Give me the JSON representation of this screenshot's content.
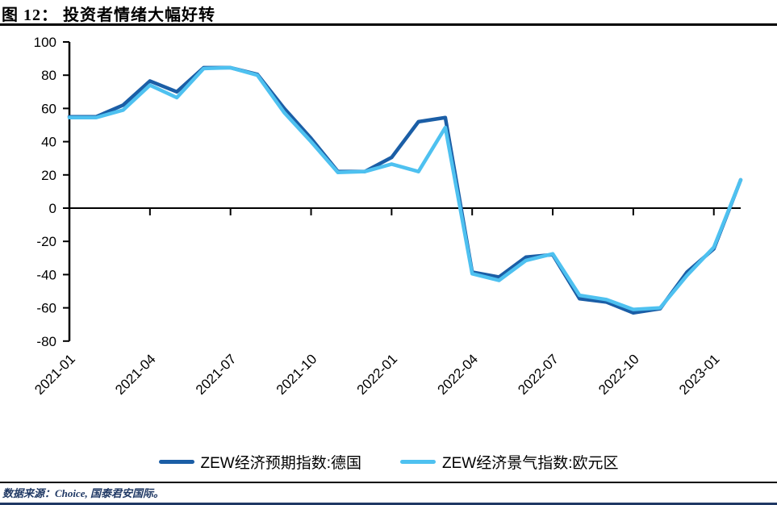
{
  "header": {
    "title": "图 12： 投资者情绪大幅好转"
  },
  "footer": {
    "source": "数据来源：Choice, 国泰君安国际。"
  },
  "colors": {
    "germany_line": "#1B5EA6",
    "eurozone_line": "#4EC1F0",
    "axis": "#000000",
    "source_text": "#1F3864",
    "bottom_rule": "#1F3864"
  },
  "legend": {
    "items": [
      {
        "label": "ZEW经济预期指数:德国",
        "color": "#1B5EA6"
      },
      {
        "label": "ZEW经济景气指数:欧元区",
        "color": "#4EC1F0"
      }
    ]
  },
  "chart_data": {
    "type": "line",
    "title": "",
    "xlabel": "",
    "ylabel": "",
    "ylim": [
      -80,
      100
    ],
    "ytick_step": 20,
    "grid": false,
    "legend_position": "bottom",
    "x": [
      "2021-01",
      "2021-02",
      "2021-03",
      "2021-04",
      "2021-05",
      "2021-06",
      "2021-07",
      "2021-08",
      "2021-09",
      "2021-10",
      "2021-11",
      "2021-12",
      "2022-01",
      "2022-02",
      "2022-03",
      "2022-04",
      "2022-05",
      "2022-06",
      "2022-07",
      "2022-08",
      "2022-09",
      "2022-10",
      "2022-11",
      "2022-12",
      "2023-01",
      "2023-02"
    ],
    "x_tick_labels": [
      "2021-01",
      "2021-04",
      "2021-07",
      "2021-10",
      "2022-01",
      "2022-04",
      "2022-07",
      "2022-10",
      "2023-01"
    ],
    "series": [
      {
        "name": "ZEW经济预期指数:德国",
        "color": "#1B5EA6",
        "values": [
          55,
          55,
          62,
          76.5,
          70,
          84.5,
          84.5,
          80.5,
          60,
          42,
          22,
          22,
          30.5,
          52,
          54.5,
          -38.5,
          -41.5,
          -29.5,
          -28,
          -54.5,
          -56.5,
          -63,
          -60.5,
          -38.5,
          -24.5,
          17
        ]
      },
      {
        "name": "ZEW经济景气指数:欧元区",
        "color": "#4EC1F0",
        "values": [
          54.5,
          54.5,
          59,
          74,
          66.5,
          84,
          84.5,
          80,
          57.5,
          40,
          21.5,
          22,
          26.5,
          22,
          48.5,
          -39.5,
          -43.5,
          -31.5,
          -27.5,
          -52.5,
          -55,
          -61,
          -60,
          -40.5,
          -23.5,
          17
        ]
      }
    ]
  }
}
